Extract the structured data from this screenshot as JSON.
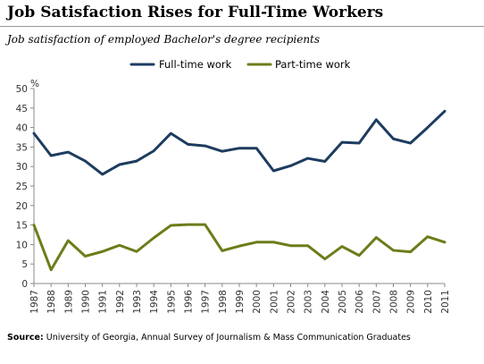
{
  "header": {
    "title": "Job Satisfaction Rises for Full-Time Workers",
    "subtitle": "Job satisfaction of employed Bachelor's degree recipients"
  },
  "footer": {
    "source_label": "Source:",
    "source_text": "University of Georgia, Annual Survey of Journalism & Mass Communication Graduates"
  },
  "chart_data": {
    "type": "line",
    "title": "Job Satisfaction Rises for Full-Time Workers",
    "subtitle": "Job satisfaction of employed Bachelor's degree recipients",
    "xlabel": "",
    "ylabel": "",
    "unit": "%",
    "x": [
      "1987",
      "1988",
      "1989",
      "1990",
      "1991",
      "1992",
      "1993",
      "1994",
      "1995",
      "1996",
      "1997",
      "1998",
      "1999",
      "2000",
      "2001",
      "2002",
      "2003",
      "2004",
      "2005",
      "2006",
      "2007",
      "2008",
      "2009",
      "2010",
      "2011"
    ],
    "ylim": [
      0,
      50
    ],
    "yticks": [
      0,
      5,
      10,
      15,
      20,
      25,
      30,
      35,
      40,
      45,
      50
    ],
    "grid": false,
    "legend_position": "top",
    "series": [
      {
        "name": "Full-time work",
        "color": "#1d3c5f",
        "values": [
          38.5,
          32.8,
          33.7,
          31.4,
          28.0,
          30.5,
          31.4,
          34.0,
          38.5,
          35.7,
          35.3,
          33.9,
          34.7,
          34.7,
          28.9,
          30.2,
          32.1,
          31.3,
          36.2,
          36.0,
          42.0,
          37.1,
          36.0,
          40.0,
          44.2
        ]
      },
      {
        "name": "Part-time work",
        "color": "#6b7d1a",
        "values": [
          15.0,
          3.5,
          11.0,
          7.0,
          8.2,
          9.8,
          8.2,
          11.7,
          14.9,
          15.1,
          15.1,
          8.4,
          9.6,
          10.6,
          10.6,
          9.7,
          9.7,
          6.3,
          9.5,
          7.2,
          11.8,
          8.5,
          8.1,
          12.0,
          10.6
        ]
      }
    ]
  }
}
